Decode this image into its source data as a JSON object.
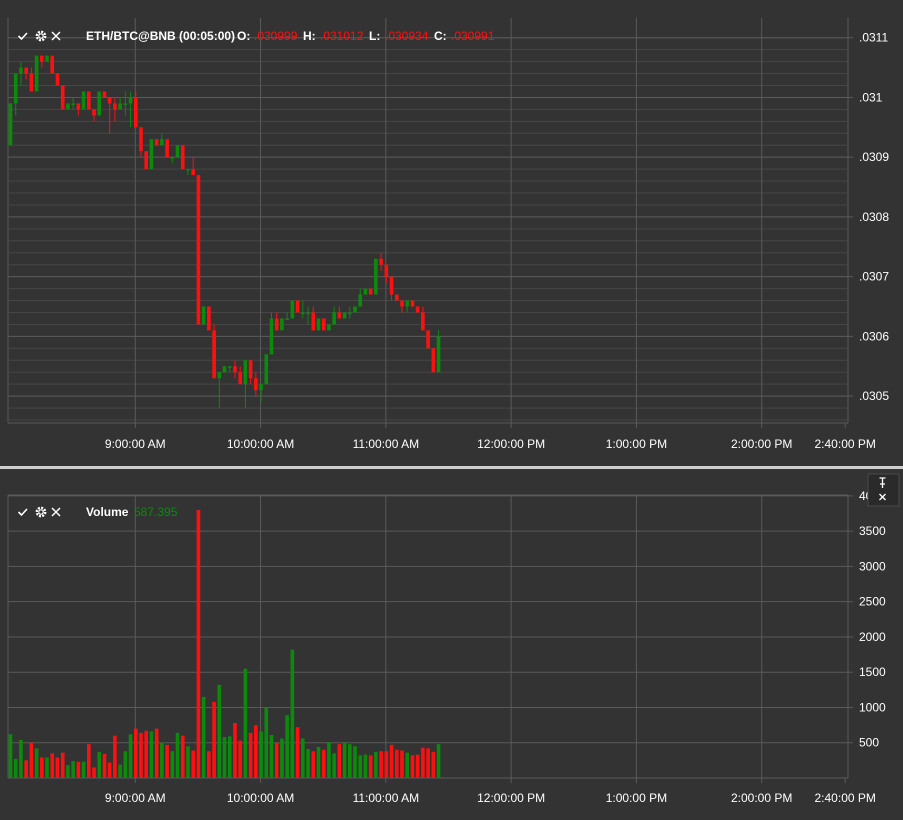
{
  "colors": {
    "background": "#333333",
    "grid": "#5a5a5a",
    "grid_minor": "#464646",
    "up": "#0c8a0c",
    "down": "#ff1010",
    "text": "#ffffff",
    "separator": "#cfcfcf"
  },
  "icons": [
    "check-icon",
    "gear-icon",
    "close-icon",
    "pin-icon"
  ],
  "chart_data": [
    {
      "type": "candlestick",
      "title": "ETH/BTC@BNB (00:05:00)",
      "ohlc_labels": {
        "o": "O:",
        "h": "H:",
        "l": "L:",
        "c": "C:"
      },
      "ohlc_values": {
        "o": ".030999",
        "h": ".031012",
        "l": ".030934",
        "c": ".030991"
      },
      "yticks": [
        ".0305",
        ".0306",
        ".0307",
        ".0308",
        ".0309",
        ".031",
        ".0311"
      ],
      "ytick_values": [
        0.0305,
        0.0306,
        0.0307,
        0.0308,
        0.0309,
        0.031,
        0.0311
      ],
      "ylim": [
        0.030455,
        0.031133
      ],
      "xticks": [
        "9:00:00 AM",
        "10:00:00 AM",
        "11:00:00 AM",
        "12:00:00 PM",
        "1:00:00 PM",
        "2:00:00 PM",
        "2:40:00 PM"
      ],
      "xtick_index": [
        24,
        48,
        72,
        96,
        120,
        144,
        160
      ],
      "grid": true,
      "candles": [
        [
          0.03092,
          0.03099,
          0.03092,
          0.03099
        ],
        [
          0.03099,
          0.03104,
          0.03097,
          0.03104
        ],
        [
          0.03104,
          0.03106,
          0.03102,
          0.03105
        ],
        [
          0.03105,
          0.03105,
          0.03103,
          0.03104
        ],
        [
          0.03104,
          0.03105,
          0.03101,
          0.03101
        ],
        [
          0.03101,
          0.03107,
          0.03101,
          0.03107
        ],
        [
          0.03107,
          0.03107,
          0.03105,
          0.03106
        ],
        [
          0.03106,
          0.03107,
          0.03106,
          0.03107
        ],
        [
          0.03107,
          0.03107,
          0.03104,
          0.03104
        ],
        [
          0.03104,
          0.03104,
          0.03102,
          0.03102
        ],
        [
          0.03102,
          0.03102,
          0.03098,
          0.03098
        ],
        [
          0.03098,
          0.03099,
          0.03098,
          0.03099
        ],
        [
          0.03099,
          0.031,
          0.03098,
          0.03099
        ],
        [
          0.03099,
          0.03099,
          0.03097,
          0.03098
        ],
        [
          0.03098,
          0.03101,
          0.03098,
          0.03101
        ],
        [
          0.03101,
          0.03101,
          0.03098,
          0.03098
        ],
        [
          0.03098,
          0.03098,
          0.03096,
          0.03097
        ],
        [
          0.03097,
          0.03101,
          0.03097,
          0.03101
        ],
        [
          0.03101,
          0.03101,
          0.031,
          0.031
        ],
        [
          0.031,
          0.031,
          0.03094,
          0.03099
        ],
        [
          0.03099,
          0.031,
          0.03096,
          0.03098
        ],
        [
          0.03098,
          0.031,
          0.03098,
          0.03099
        ],
        [
          0.03099,
          0.03101,
          0.03097,
          0.03099
        ],
        [
          0.03099,
          0.03101,
          0.03095,
          0.031
        ],
        [
          0.031,
          0.03101,
          0.03095,
          0.03095
        ],
        [
          0.03095,
          0.03095,
          0.0309,
          0.03091
        ],
        [
          0.03091,
          0.03091,
          0.03088,
          0.03088
        ],
        [
          0.03088,
          0.03093,
          0.03088,
          0.03093
        ],
        [
          0.03093,
          0.03093,
          0.03092,
          0.03092
        ],
        [
          0.03092,
          0.03094,
          0.03092,
          0.03093
        ],
        [
          0.03093,
          0.03093,
          0.0309,
          0.0309
        ],
        [
          0.0309,
          0.0309,
          0.03089,
          0.0309
        ],
        [
          0.0309,
          0.03092,
          0.0309,
          0.03092
        ],
        [
          0.03092,
          0.03092,
          0.03088,
          0.03088
        ],
        [
          0.03088,
          0.03088,
          0.03087,
          0.03088
        ],
        [
          0.03088,
          0.0309,
          0.03087,
          0.03087
        ],
        [
          0.03087,
          0.03087,
          0.03062,
          0.03062
        ],
        [
          0.03062,
          0.03065,
          0.03062,
          0.03065
        ],
        [
          0.03065,
          0.03065,
          0.03061,
          0.03061
        ],
        [
          0.03061,
          0.03062,
          0.03053,
          0.03053
        ],
        [
          0.03053,
          0.03054,
          0.03048,
          0.03054
        ],
        [
          0.03054,
          0.03055,
          0.03054,
          0.03055
        ],
        [
          0.03055,
          0.03055,
          0.03054,
          0.03055
        ],
        [
          0.03055,
          0.03056,
          0.03053,
          0.03054
        ],
        [
          0.03054,
          0.03055,
          0.03052,
          0.03052
        ],
        [
          0.03052,
          0.03056,
          0.03048,
          0.03056
        ],
        [
          0.03056,
          0.03056,
          0.03052,
          0.03053
        ],
        [
          0.03053,
          0.03054,
          0.0305,
          0.03051
        ],
        [
          0.03051,
          0.03052,
          0.03049,
          0.03052
        ],
        [
          0.03052,
          0.03057,
          0.03052,
          0.03057
        ],
        [
          0.03057,
          0.03064,
          0.03057,
          0.03063
        ],
        [
          0.03063,
          0.03064,
          0.03061,
          0.03061
        ],
        [
          0.03061,
          0.03063,
          0.03061,
          0.03063
        ],
        [
          0.03063,
          0.03064,
          0.03063,
          0.03063
        ],
        [
          0.03063,
          0.03066,
          0.03063,
          0.03066
        ],
        [
          0.03066,
          0.03066,
          0.03064,
          0.03064
        ],
        [
          0.03064,
          0.03066,
          0.03063,
          0.03064
        ],
        [
          0.03064,
          0.03065,
          0.03062,
          0.03064
        ],
        [
          0.03064,
          0.03065,
          0.03061,
          0.03061
        ],
        [
          0.03061,
          0.03063,
          0.03061,
          0.03063
        ],
        [
          0.03063,
          0.03063,
          0.03061,
          0.03061
        ],
        [
          0.03061,
          0.03062,
          0.03061,
          0.03062
        ],
        [
          0.03062,
          0.03065,
          0.03062,
          0.03064
        ],
        [
          0.03064,
          0.03065,
          0.03063,
          0.03063
        ],
        [
          0.03063,
          0.03064,
          0.03063,
          0.03064
        ],
        [
          0.03064,
          0.03065,
          0.03063,
          0.03064
        ],
        [
          0.03064,
          0.03065,
          0.03064,
          0.03065
        ],
        [
          0.03065,
          0.03068,
          0.03065,
          0.03067
        ],
        [
          0.03067,
          0.03068,
          0.03067,
          0.03068
        ],
        [
          0.03068,
          0.03068,
          0.03067,
          0.03067
        ],
        [
          0.03067,
          0.03073,
          0.03067,
          0.03073
        ],
        [
          0.03073,
          0.03074,
          0.03071,
          0.03072
        ],
        [
          0.03072,
          0.03072,
          0.03069,
          0.0307
        ],
        [
          0.0307,
          0.0307,
          0.03066,
          0.03067
        ],
        [
          0.03067,
          0.03067,
          0.03066,
          0.03066
        ],
        [
          0.03066,
          0.03066,
          0.03064,
          0.03065
        ],
        [
          0.03065,
          0.03066,
          0.03064,
          0.03066
        ],
        [
          0.03066,
          0.03066,
          0.03065,
          0.03065
        ],
        [
          0.03065,
          0.03065,
          0.03064,
          0.03064
        ],
        [
          0.03064,
          0.03065,
          0.03061,
          0.03061
        ],
        [
          0.03061,
          0.03061,
          0.03058,
          0.03058
        ],
        [
          0.03058,
          0.03058,
          0.03054,
          0.03054
        ],
        [
          0.03054,
          0.03061,
          0.03054,
          0.0306
        ]
      ]
    },
    {
      "type": "bar",
      "title": "Volume",
      "current_value": "587.395",
      "yticks": [
        "500",
        "1000",
        "1500",
        "2000",
        "2500",
        "3000",
        "3500",
        "4000"
      ],
      "ytick_values": [
        500,
        1000,
        1500,
        2000,
        2500,
        3000,
        3500,
        4000
      ],
      "ylim": [
        0,
        4000
      ],
      "xticks": [
        "9:00:00 AM",
        "10:00:00 AM",
        "11:00:00 AM",
        "12:00:00 PM",
        "1:00:00 PM",
        "2:00:00 PM",
        "2:40:00 PM"
      ],
      "xtick_index": [
        24,
        48,
        72,
        96,
        120,
        144,
        160
      ],
      "grid": true,
      "values": [
        620,
        270,
        540,
        250,
        500,
        420,
        290,
        290,
        350,
        290,
        360,
        180,
        240,
        230,
        230,
        480,
        150,
        370,
        340,
        220,
        600,
        190,
        380,
        620,
        700,
        640,
        670,
        660,
        700,
        500,
        470,
        380,
        640,
        600,
        450,
        390,
        3800,
        1150,
        380,
        1080,
        1320,
        580,
        590,
        780,
        530,
        1550,
        640,
        750,
        660,
        1000,
        610,
        500,
        560,
        890,
        1820,
        720,
        560,
        410,
        380,
        440,
        400,
        510,
        350,
        480,
        500,
        480,
        450,
        320,
        330,
        320,
        370,
        380,
        380,
        470,
        400,
        390,
        360,
        320,
        330,
        430,
        420,
        370,
        480
      ]
    }
  ]
}
